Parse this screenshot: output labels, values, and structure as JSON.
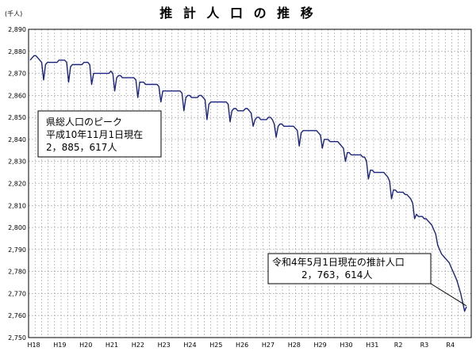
{
  "chart_data": {
    "type": "line",
    "title": "推 計 人 口 の 推 移",
    "yunit": "(千人)",
    "ylim": [
      2750,
      2890
    ],
    "yticks": [
      2750,
      2760,
      2770,
      2780,
      2790,
      2800,
      2810,
      2820,
      2830,
      2840,
      2850,
      2860,
      2870,
      2880,
      2890
    ],
    "ytick_labels": [
      "2,750",
      "2,760",
      "2,770",
      "2,780",
      "2,790",
      "2,800",
      "2,810",
      "2,820",
      "2,830",
      "2,840",
      "2,850",
      "2,860",
      "2,870",
      "2,880",
      "2,890"
    ],
    "xticks": [
      "H18",
      "H19",
      "H20",
      "H21",
      "H22",
      "H23",
      "H24",
      "H25",
      "H26",
      "H27",
      "H28",
      "H29",
      "H30",
      "H31",
      "R2",
      "R3",
      "R4"
    ],
    "grid": true,
    "series": [
      {
        "color": "#1a237e",
        "values": [
          2876,
          2877,
          2878,
          2878,
          2877,
          2876,
          2875,
          2867,
          2874,
          2875,
          2875,
          2875,
          2875,
          2875,
          2875,
          2876,
          2876,
          2876,
          2876,
          2875,
          2866,
          2873,
          2874,
          2874,
          2874,
          2874,
          2874,
          2874,
          2875,
          2875,
          2875,
          2874,
          2865,
          2870,
          2870,
          2870,
          2870,
          2870,
          2870,
          2870,
          2870,
          2870,
          2871,
          2870,
          2862,
          2868,
          2869,
          2869,
          2868,
          2868,
          2868,
          2868,
          2868,
          2868,
          2868,
          2867,
          2859,
          2866,
          2866,
          2866,
          2865,
          2865,
          2865,
          2865,
          2865,
          2865,
          2865,
          2864,
          2857,
          2862,
          2862,
          2862,
          2862,
          2862,
          2862,
          2862,
          2862,
          2862,
          2862,
          2861,
          2853,
          2859,
          2860,
          2860,
          2859,
          2859,
          2859,
          2859,
          2860,
          2860,
          2859,
          2858,
          2849,
          2856,
          2857,
          2857,
          2857,
          2857,
          2857,
          2857,
          2857,
          2857,
          2857,
          2856,
          2848,
          2853,
          2854,
          2854,
          2853,
          2853,
          2853,
          2853,
          2854,
          2854,
          2853,
          2852,
          2846,
          2849,
          2850,
          2850,
          2849,
          2849,
          2849,
          2849,
          2850,
          2850,
          2849,
          2847,
          2841,
          2846,
          2847,
          2847,
          2846,
          2846,
          2846,
          2846,
          2846,
          2846,
          2845,
          2844,
          2837,
          2843,
          2844,
          2844,
          2844,
          2844,
          2844,
          2844,
          2844,
          2844,
          2843,
          2842,
          2836,
          2840,
          2840,
          2840,
          2839,
          2839,
          2839,
          2839,
          2839,
          2838,
          2837,
          2836,
          2830,
          2834,
          2834,
          2833,
          2833,
          2833,
          2833,
          2833,
          2833,
          2832,
          2832,
          2830,
          2822,
          2826,
          2826,
          2825,
          2825,
          2825,
          2825,
          2825,
          2825,
          2824,
          2823,
          2821,
          2813,
          2817,
          2817,
          2816,
          2816,
          2816,
          2816,
          2815,
          2815,
          2814,
          2813,
          2811,
          2804,
          2806,
          2805,
          2805,
          2805,
          2804,
          2804,
          2803,
          2802,
          2801,
          2799,
          2797,
          2792,
          2790,
          2788,
          2787,
          2786,
          2785,
          2784,
          2782,
          2780,
          2778,
          2776,
          2773,
          2770,
          2766,
          2762,
          2764
        ]
      }
    ],
    "annotations": [
      {
        "lines": [
          "県総人口のピーク",
          "平成10年11月1日現在",
          "2，885，617人"
        ]
      },
      {
        "lines": [
          "令和4年5月1日現在の推計人口",
          "2，763，614人"
        ]
      }
    ]
  }
}
